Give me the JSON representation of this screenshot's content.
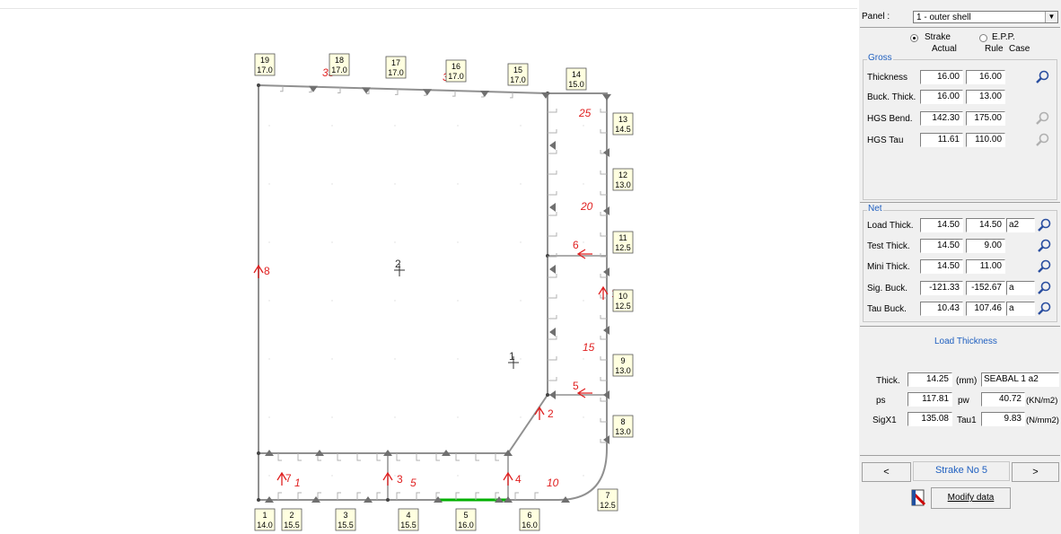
{
  "panel": {
    "label": "Panel :",
    "selected": "1 - outer shell",
    "strake_label": "Strake",
    "epp_label": "E.P.P.",
    "col_actual": "Actual",
    "col_rule": "Rule",
    "col_case": "Case",
    "gross_title": "Gross",
    "gross_rows": [
      {
        "label": "Thickness",
        "actual": "16.00",
        "rule": "16.00"
      },
      {
        "label": "Buck. Thick.",
        "actual": "16.00",
        "rule": "13.00"
      },
      {
        "label": "HGS Bend.",
        "actual": "142.30",
        "rule": "175.00"
      },
      {
        "label": "HGS Tau",
        "actual": "11.61",
        "rule": "110.00"
      }
    ],
    "net_title": "Net",
    "net_rows": [
      {
        "label": "Load Thick.",
        "actual": "14.50",
        "rule": "14.50",
        "case": "a2"
      },
      {
        "label": "Test Thick.",
        "actual": "14.50",
        "rule": "9.00",
        "case": ""
      },
      {
        "label": "Mini Thick.",
        "actual": "14.50",
        "rule": "11.00",
        "case": ""
      },
      {
        "label": "Sig. Buck.",
        "actual": "-121.33",
        "rule": "-152.67",
        "case": "a"
      },
      {
        "label": "Tau Buck.",
        "actual": "10.43",
        "rule": "107.46",
        "case": "a"
      }
    ],
    "detail": {
      "title": "Load Thickness",
      "thick_label": "Thick.",
      "thick_value": "14.25",
      "thick_unit": "(mm)",
      "thick_case": "SEABAL 1 a2",
      "ps_label": "ps",
      "ps_value": "117.81",
      "pw_label": "pw",
      "pw_value": "40.72",
      "pressure_unit": "(KN/m2)",
      "sigx_label": "SigX1",
      "sigx_value": "135.08",
      "tau_label": "Tau1",
      "tau_value": "9.83",
      "stress_unit": "(N/mm2)"
    },
    "nav": {
      "prev": "<",
      "current": "Strake No 5",
      "next": ">"
    },
    "modify_label": "Modify data",
    "icons": {
      "magnifier": "magnifier-icon",
      "modify": "modify-data-icon"
    }
  },
  "drawing": {
    "boxes": [
      {
        "num": "1",
        "val": "14.0"
      },
      {
        "num": "2",
        "val": "15.5"
      },
      {
        "num": "3",
        "val": "15.5"
      },
      {
        "num": "4",
        "val": "15.5"
      },
      {
        "num": "5",
        "val": "16.0"
      },
      {
        "num": "6",
        "val": "16.0"
      },
      {
        "num": "7",
        "val": "12.5"
      },
      {
        "num": "8",
        "val": "13.0"
      },
      {
        "num": "9",
        "val": "13.0"
      },
      {
        "num": "10",
        "val": "12.5"
      },
      {
        "num": "11",
        "val": "12.5"
      },
      {
        "num": "12",
        "val": "13.0"
      },
      {
        "num": "13",
        "val": "14.5"
      },
      {
        "num": "14",
        "val": "15.0"
      },
      {
        "num": "15",
        "val": "17.0"
      },
      {
        "num": "16",
        "val": "17.0"
      },
      {
        "num": "17",
        "val": "17.0"
      },
      {
        "num": "18",
        "val": "17.0"
      },
      {
        "num": "19",
        "val": "17.0"
      }
    ],
    "red_labels": [
      "1",
      "2",
      "3",
      "4",
      "5",
      "6",
      "7",
      "8",
      "10",
      "15",
      "20",
      "25",
      "30",
      "35"
    ],
    "nodes": [
      "1",
      "2"
    ],
    "colors": {
      "line": "#909090",
      "red": "#e02020",
      "green": "#00b000",
      "box_bg": "#ffffe0"
    }
  }
}
